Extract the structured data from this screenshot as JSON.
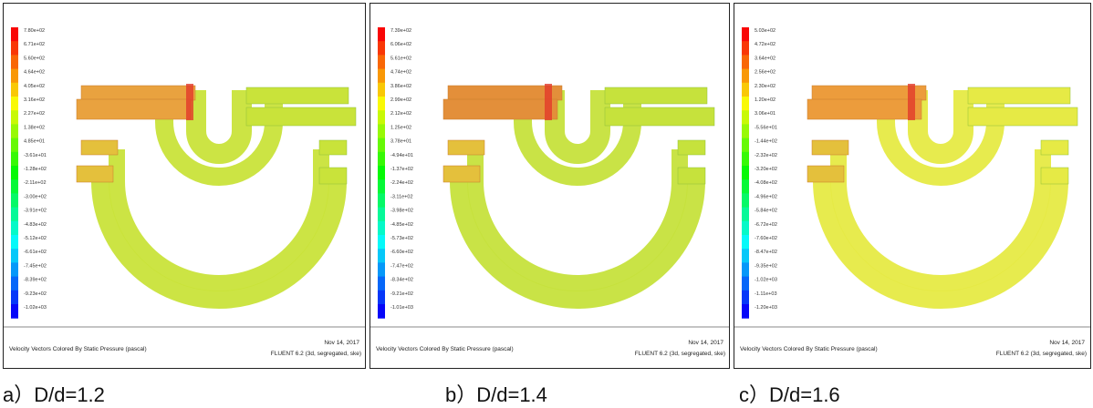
{
  "panels": [
    {
      "caption": "a）D/d=1.2",
      "colorbar": [
        "7.80e+02",
        "6.71e+02",
        "5.60e+02",
        "4.64e+02",
        "4.05e+02",
        "3.16e+02",
        "2.27e+02",
        "1.38e+02",
        "4.85e+01",
        "-3.61e+01",
        "-1.28e+02",
        "-2.11e+02",
        "-3.00e+02",
        "-3.91e+02",
        "-4.83e+02",
        "-5.12e+02",
        "-6.61e+02",
        "-7.45e+02",
        "-8.39e+02",
        "-9.23e+02",
        "-1.02e+03"
      ],
      "footer": "Velocity Vectors Colored By Static Pressure (pascal)",
      "date": "Nov 14, 2017",
      "solver": "FLUENT 6.2 (3d, segregated, ske)"
    },
    {
      "caption": "b）D/d=1.4",
      "colorbar": [
        "7.39e+02",
        "6.06e+02",
        "5.61e+02",
        "4.74e+02",
        "3.86e+02",
        "2.99e+02",
        "2.12e+02",
        "1.25e+02",
        "3.78e+01",
        "-4.94e+01",
        "-1.37e+02",
        "-2.24e+02",
        "-3.11e+02",
        "-3.98e+02",
        "-4.85e+02",
        "-5.73e+02",
        "-6.60e+02",
        "-7.47e+02",
        "-8.34e+02",
        "-9.21e+02",
        "-1.01e+03"
      ],
      "footer": "Velocity Vectors Colored By Static Pressure (pascal)",
      "date": "Nov 14, 2017",
      "solver": "FLUENT 6.2 (3d, segregated, ske)"
    },
    {
      "caption": "c）D/d=1.6",
      "colorbar": [
        "5.03e+02",
        "4.72e+02",
        "3.64e+02",
        "2.56e+02",
        "2.30e+02",
        "1.20e+02",
        "3.06e+01",
        "-5.56e+01",
        "-1.44e+02",
        "-2.32e+02",
        "-3.20e+02",
        "-4.08e+02",
        "-4.96e+02",
        "-5.84e+02",
        "-6.72e+02",
        "-7.60e+02",
        "-8.47e+02",
        "-9.35e+02",
        "-1.02e+03",
        "-1.11e+03",
        "-1.20e+03"
      ],
      "footer": "Velocity Vectors Colored By Static Pressure (pascal)",
      "date": "Nov 14, 2017",
      "solver": "FLUENT 6.2 (3d, segregated, ske)"
    }
  ]
}
